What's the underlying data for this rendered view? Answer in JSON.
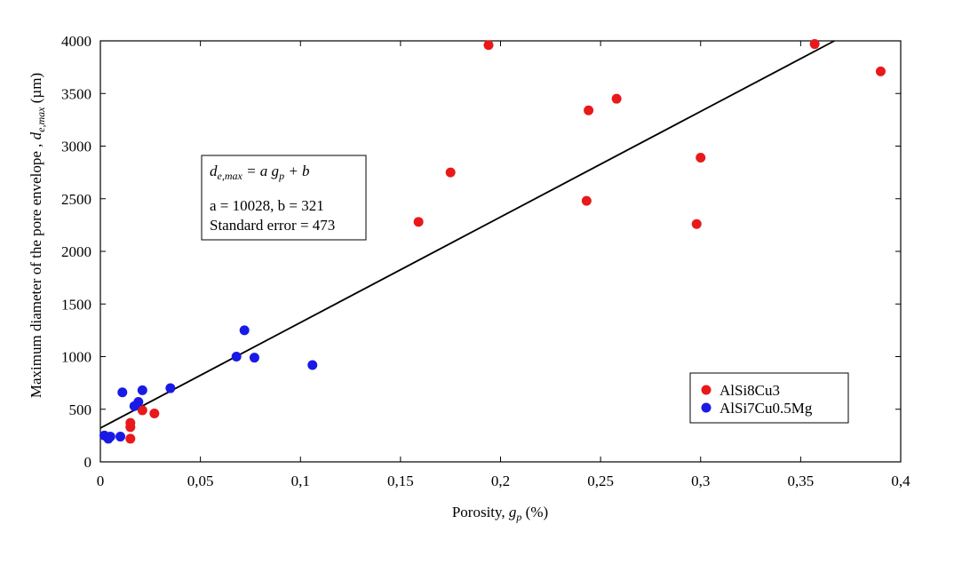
{
  "chart_data": {
    "type": "scatter",
    "xlabel": "Porosity, g_p (%)",
    "ylabel": "Maximum diameter of the pore envelope , d_e,max (µm)",
    "xlim": [
      0,
      0.4
    ],
    "ylim": [
      0,
      4000
    ],
    "x_ticks": [
      0,
      0.05,
      0.1,
      0.15,
      0.2,
      0.25,
      0.3,
      0.35,
      0.4
    ],
    "x_tick_labels": [
      "0",
      "0,05",
      "0,1",
      "0,15",
      "0,2",
      "0,25",
      "0,3",
      "0,35",
      "0,4"
    ],
    "y_ticks": [
      0,
      500,
      1000,
      1500,
      2000,
      2500,
      3000,
      3500,
      4000
    ],
    "y_tick_labels": [
      "0",
      "500",
      "1000",
      "1500",
      "2000",
      "2500",
      "3000",
      "3500",
      "4000"
    ],
    "grid": false,
    "legend_position": "bottom-right",
    "series": [
      {
        "name": "AlSi8Cu3",
        "color": "#e8191a",
        "points": [
          {
            "x": 0.015,
            "y": 220
          },
          {
            "x": 0.015,
            "y": 330
          },
          {
            "x": 0.015,
            "y": 370
          },
          {
            "x": 0.021,
            "y": 490
          },
          {
            "x": 0.027,
            "y": 460
          },
          {
            "x": 0.159,
            "y": 2280
          },
          {
            "x": 0.175,
            "y": 2750
          },
          {
            "x": 0.194,
            "y": 3960
          },
          {
            "x": 0.243,
            "y": 2480
          },
          {
            "x": 0.244,
            "y": 3340
          },
          {
            "x": 0.258,
            "y": 3450
          },
          {
            "x": 0.298,
            "y": 2260
          },
          {
            "x": 0.3,
            "y": 2890
          },
          {
            "x": 0.357,
            "y": 3970
          },
          {
            "x": 0.39,
            "y": 3710
          }
        ]
      },
      {
        "name": "AlSi7Cu0.5Mg",
        "color": "#1a1ae6",
        "points": [
          {
            "x": 0.002,
            "y": 250
          },
          {
            "x": 0.004,
            "y": 220
          },
          {
            "x": 0.005,
            "y": 240
          },
          {
            "x": 0.01,
            "y": 240
          },
          {
            "x": 0.011,
            "y": 660
          },
          {
            "x": 0.017,
            "y": 530
          },
          {
            "x": 0.019,
            "y": 570
          },
          {
            "x": 0.021,
            "y": 680
          },
          {
            "x": 0.035,
            "y": 700
          },
          {
            "x": 0.068,
            "y": 1000
          },
          {
            "x": 0.072,
            "y": 1250
          },
          {
            "x": 0.077,
            "y": 990
          },
          {
            "x": 0.106,
            "y": 920
          }
        ]
      }
    ],
    "fit_line": {
      "a": 10028,
      "b": 321
    },
    "annotation": {
      "equation_lhs": "d",
      "equation_lhs_sub": "e,max",
      "equation_rhs_1": " = a g",
      "equation_rhs_sub": "p",
      "equation_rhs_2": " + b",
      "params": "a = 10028, b = 321",
      "std_error": "Standard error  = 473"
    },
    "xlabel_parts": {
      "main": "Porosity, ",
      "var": "g",
      "sub": "p",
      "unit": " (%)"
    },
    "ylabel_parts": {
      "main": "Maximum diameter of the pore envelope , ",
      "var": "d",
      "sub": "e,max",
      "unit": " (µm)"
    }
  }
}
